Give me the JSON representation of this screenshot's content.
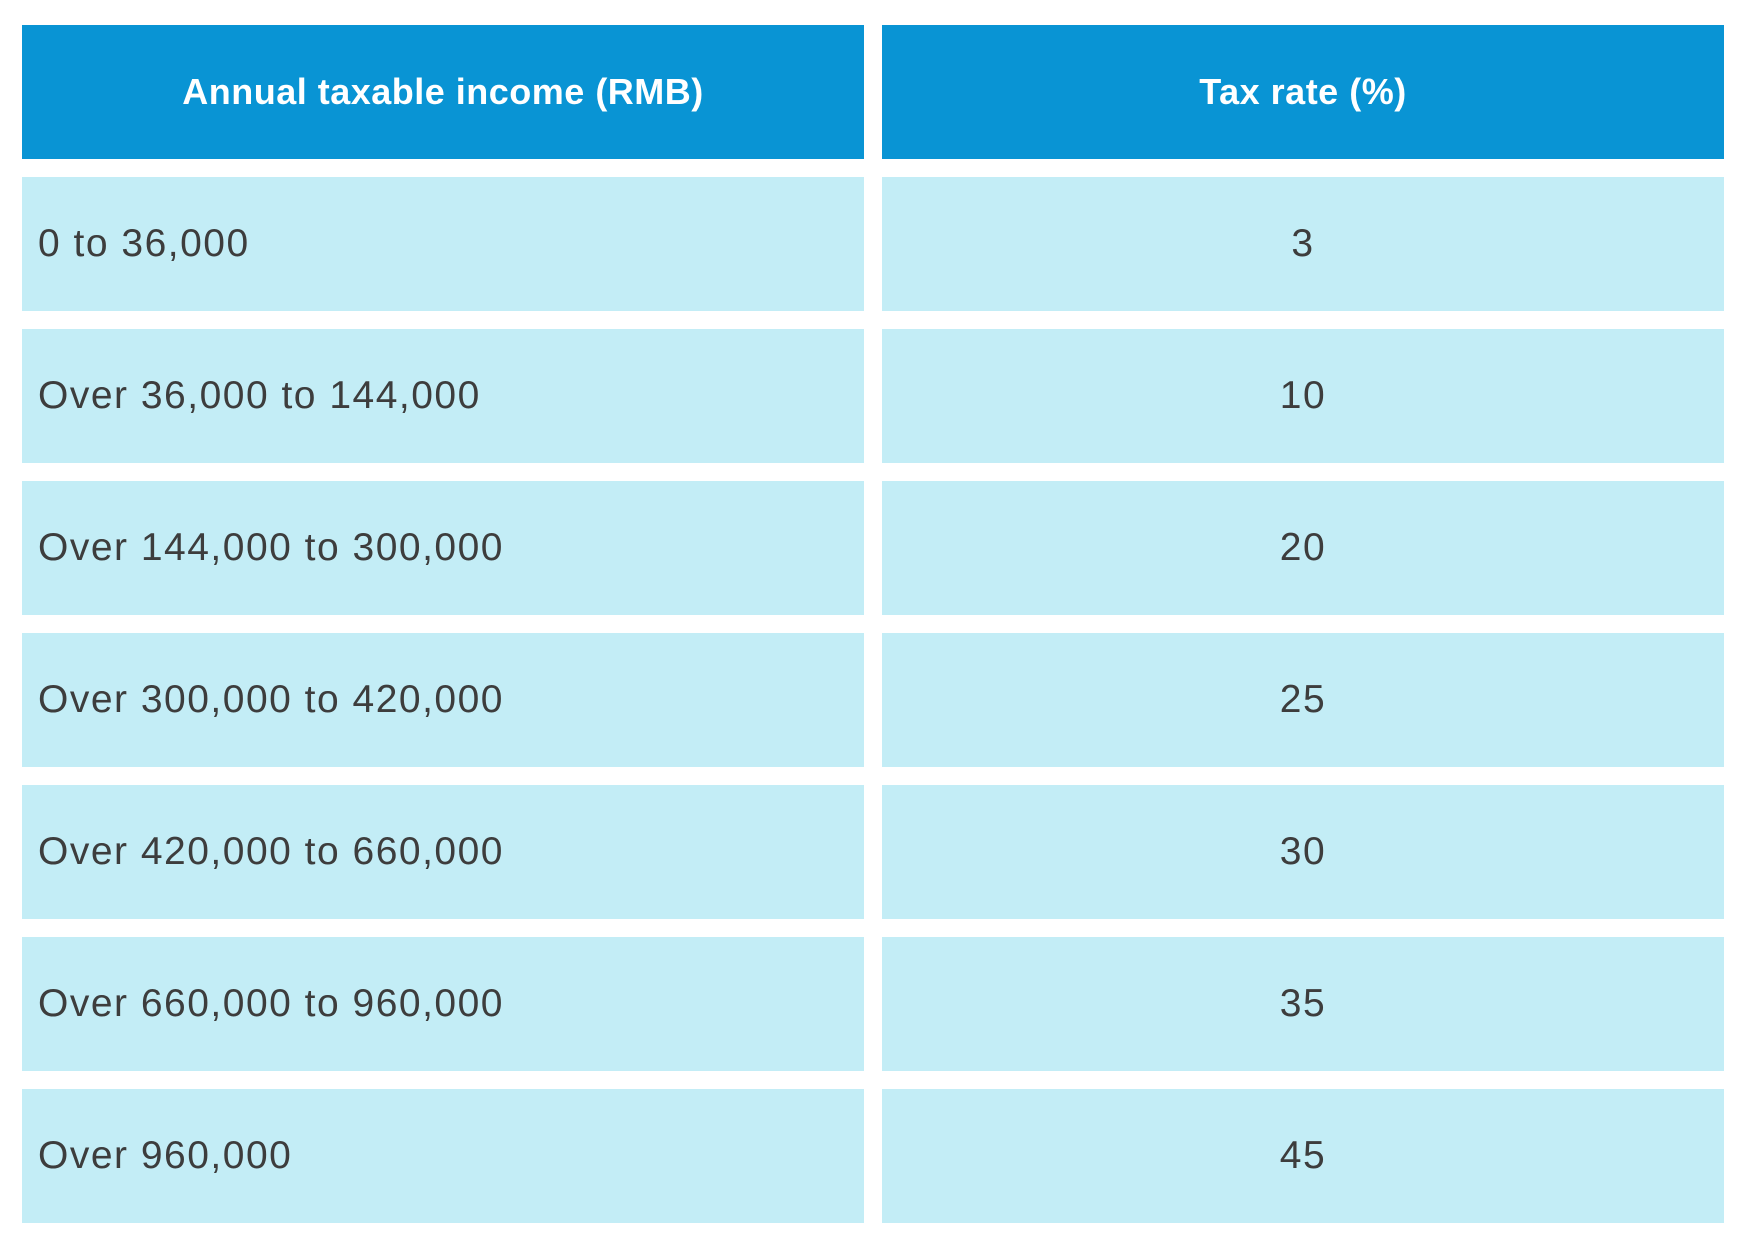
{
  "colors": {
    "header_bg": "#0994d4",
    "row_bg": "#c3edf6",
    "header_text": "#ffffff",
    "row_text": "#3d3d3d",
    "page_bg": "#ffffff"
  },
  "table": {
    "headers": {
      "income": "Annual taxable income (RMB)",
      "rate": "Tax rate (%)"
    },
    "rows": [
      {
        "income": "0 to 36,000",
        "rate": "3"
      },
      {
        "income": "Over 36,000 to 144,000",
        "rate": "10"
      },
      {
        "income": "Over 144,000 to 300,000",
        "rate": "20"
      },
      {
        "income": "Over 300,000 to 420,000",
        "rate": "25"
      },
      {
        "income": "Over 420,000 to 660,000",
        "rate": "30"
      },
      {
        "income": "Over 660,000 to 960,000",
        "rate": "35"
      },
      {
        "income": "Over 960,000",
        "rate": "45"
      }
    ]
  },
  "chart_data": {
    "type": "table",
    "title": "",
    "columns": [
      "Annual taxable income (RMB)",
      "Tax rate (%)"
    ],
    "rows": [
      [
        "0 to 36,000",
        3
      ],
      [
        "Over 36,000 to 144,000",
        10
      ],
      [
        "Over 144,000 to 300,000",
        20
      ],
      [
        "Over 300,000 to 420,000",
        25
      ],
      [
        "Over 420,000 to 660,000",
        30
      ],
      [
        "Over 660,000 to 960,000",
        35
      ],
      [
        "Over 960,000",
        45
      ]
    ],
    "layout": {
      "header_position": "top",
      "grid": "separated-rows",
      "income_align": "left",
      "rate_align": "center"
    }
  }
}
